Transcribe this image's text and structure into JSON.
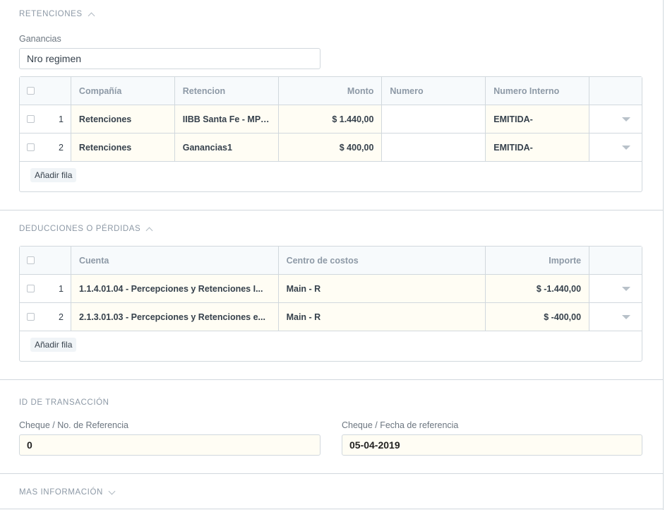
{
  "retenciones": {
    "section_title": "RETENCIONES",
    "ganancias_label": "Ganancias",
    "ganancias_value": "Nro regimen",
    "headers": {
      "company": "Compañía",
      "retencion": "Retencion",
      "monto": "Monto",
      "numero": "Numero",
      "numero_interno": "Numero Interno"
    },
    "rows": [
      {
        "idx": "1",
        "company": "Retenciones",
        "retencion": "IIBB Santa Fe - MP ...",
        "monto": "$ 1.440,00",
        "numero": "",
        "numero_interno": "EMITIDA-"
      },
      {
        "idx": "2",
        "company": "Retenciones",
        "retencion": "Ganancias1",
        "monto": "$ 400,00",
        "numero": "",
        "numero_interno": "EMITIDA-"
      }
    ],
    "add_row": "Añadir fila"
  },
  "deducciones": {
    "section_title": "DEDUCCIONES O PÉRDIDAS",
    "headers": {
      "cuenta": "Cuenta",
      "centro": "Centro de costos",
      "importe": "Importe"
    },
    "rows": [
      {
        "idx": "1",
        "cuenta": "1.1.4.01.04 - Percepciones y Retenciones I...",
        "centro": "Main - R",
        "importe": "$ -1.440,00"
      },
      {
        "idx": "2",
        "cuenta": "2.1.3.01.03 - Percepciones y Retenciones e...",
        "centro": "Main - R",
        "importe": "$ -400,00"
      }
    ],
    "add_row": "Añadir fila"
  },
  "transaccion": {
    "section_title": "ID DE TRANSACCIÓN",
    "cheque_label": "Cheque / No. de Referencia",
    "cheque_value": "0",
    "fecha_label": "Cheque / Fecha de referencia",
    "fecha_value": "05-04-2019"
  },
  "mas_info": {
    "section_title": "MAS INFORMACIÓN"
  }
}
